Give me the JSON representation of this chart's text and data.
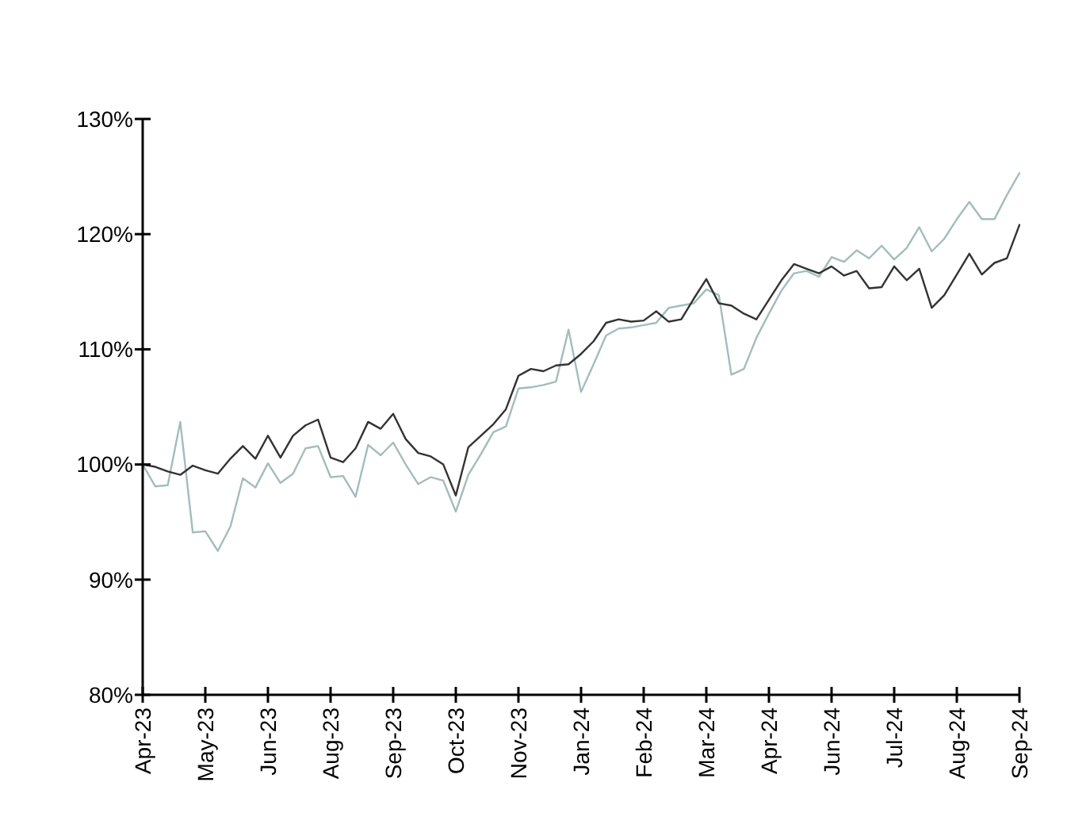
{
  "chart_data": {
    "type": "line",
    "categories": [
      "Apr-23",
      null,
      null,
      null,
      null,
      "May-23",
      null,
      null,
      null,
      null,
      "Jun-23",
      null,
      null,
      null,
      null,
      "Aug-23",
      null,
      null,
      null,
      null,
      "Sep-23",
      null,
      null,
      null,
      null,
      "Oct-23",
      null,
      null,
      null,
      null,
      "Nov-23",
      null,
      null,
      null,
      null,
      "Jan-24",
      null,
      null,
      null,
      null,
      "Feb-24",
      null,
      null,
      null,
      null,
      "Mar-24",
      null,
      null,
      null,
      null,
      "Apr-24",
      null,
      null,
      null,
      null,
      "Jun-24",
      null,
      null,
      null,
      null,
      "Jul-24",
      null,
      null,
      null,
      null,
      "Aug-24",
      null,
      null,
      null,
      null,
      "Sep-24"
    ],
    "series": [
      {
        "color": "#a3bcbc",
        "values": [
          100.0,
          98.1,
          98.2,
          103.7,
          94.1,
          94.2,
          92.5,
          94.6,
          98.8,
          98.0,
          100.1,
          98.4,
          99.2,
          101.4,
          101.6,
          98.9,
          99.0,
          97.2,
          101.7,
          100.8,
          101.9,
          100.0,
          98.3,
          98.9,
          98.6,
          95.9,
          99.1,
          100.9,
          102.8,
          103.3,
          106.6,
          106.7,
          106.9,
          107.2,
          111.7,
          106.3,
          108.7,
          111.2,
          111.8,
          111.9,
          112.1,
          112.3,
          113.6,
          113.8,
          114.0,
          115.2,
          114.7,
          107.8,
          108.3,
          111.0,
          113.1,
          115.1,
          116.6,
          116.8,
          116.3,
          118.0,
          117.6,
          118.6,
          117.9,
          119.0,
          117.8,
          118.8,
          120.6,
          118.5,
          119.6,
          121.3,
          122.8,
          121.3,
          121.3,
          123.4,
          125.3
        ]
      },
      {
        "color": "#333333",
        "values": [
          100.0,
          99.8,
          99.4,
          99.1,
          99.9,
          99.5,
          99.2,
          100.5,
          101.6,
          100.5,
          102.5,
          100.6,
          102.5,
          103.4,
          103.9,
          100.6,
          100.2,
          101.4,
          103.7,
          103.1,
          104.4,
          102.2,
          101.0,
          100.7,
          100.0,
          97.3,
          101.5,
          102.5,
          103.5,
          104.8,
          107.7,
          108.3,
          108.1,
          108.6,
          108.7,
          109.6,
          110.7,
          112.3,
          112.6,
          112.4,
          112.5,
          113.3,
          112.4,
          112.6,
          114.4,
          116.1,
          114.0,
          113.8,
          113.1,
          112.6,
          114.3,
          116.0,
          117.4,
          117.0,
          116.6,
          117.2,
          116.4,
          116.8,
          115.3,
          115.4,
          117.2,
          116.0,
          117.0,
          113.6,
          114.7,
          116.5,
          118.3,
          116.5,
          117.5,
          117.9,
          120.8
        ]
      }
    ],
    "ylim": [
      80,
      130
    ],
    "yticks": [
      {
        "value": 80,
        "label": "80%"
      },
      {
        "value": 90,
        "label": "90%"
      },
      {
        "value": 100,
        "label": "100%"
      },
      {
        "value": 110,
        "label": "110%"
      },
      {
        "value": 120,
        "label": "120%"
      },
      {
        "value": 130,
        "label": "130%"
      }
    ],
    "grid": false,
    "marker": "none",
    "line_style": "solid"
  }
}
